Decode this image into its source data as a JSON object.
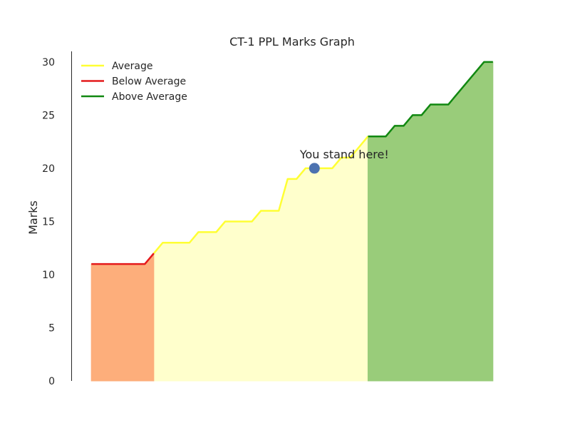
{
  "chart_data": {
    "type": "area",
    "title": "CT-1 PPL Marks Graph",
    "xlabel": "",
    "ylabel": "Marks",
    "ylim": [
      0,
      31
    ],
    "xlim": [
      -2.25,
      47.25
    ],
    "yticks": [
      "0",
      "5",
      "10",
      "15",
      "20",
      "25",
      "30"
    ],
    "grid": false,
    "legend_position": "top-left",
    "series": [
      {
        "name": "Average",
        "color": "#ffff33",
        "fill": "#ffffcc",
        "x": [
          7,
          8,
          9,
          10,
          11,
          12,
          13,
          14,
          15,
          16,
          17,
          18,
          19,
          20,
          21,
          22,
          23,
          24,
          25,
          26,
          27,
          28,
          29,
          30,
          31
        ],
        "y": [
          12,
          13,
          13,
          13,
          13,
          14,
          14,
          14,
          15,
          15,
          15,
          15,
          16,
          16,
          16,
          19,
          19,
          20,
          20,
          20,
          20,
          21,
          21,
          22,
          23
        ]
      },
      {
        "name": "Below Average",
        "color": "#e41a1c",
        "fill": "#fdae7b",
        "x": [
          0,
          1,
          2,
          3,
          4,
          5,
          6,
          7
        ],
        "y": [
          11,
          11,
          11,
          11,
          11,
          11,
          11,
          12
        ]
      },
      {
        "name": "Above Average",
        "color": "#118811",
        "fill": "#99cc7a",
        "x": [
          31,
          32,
          33,
          34,
          35,
          36,
          37,
          38,
          39,
          40,
          41,
          42,
          43,
          44,
          45
        ],
        "y": [
          23,
          23,
          23,
          24,
          24,
          25,
          25,
          26,
          26,
          26,
          27,
          28,
          29,
          30,
          30
        ]
      }
    ],
    "annotations": [
      {
        "text": "You stand here!",
        "x": 25,
        "y": 20,
        "point_color": "#4c72b0"
      }
    ]
  }
}
